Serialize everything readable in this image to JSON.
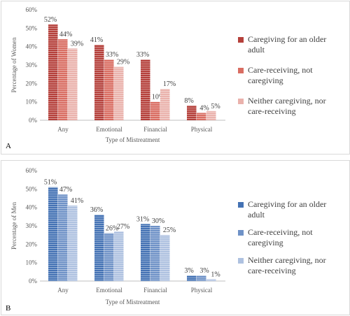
{
  "panels": [
    {
      "id": "a",
      "letter": "A",
      "chart_data": {
        "type": "bar",
        "categories": [
          "Any",
          "Emotional",
          "Financial",
          "Physical"
        ],
        "xlabel": "Type of Mistreatment",
        "ylabel": "Percentage of Women",
        "ylim": [
          0,
          60
        ],
        "yticks": [
          "0%",
          "10%",
          "20%",
          "30%",
          "40%",
          "50%",
          "60%"
        ],
        "grid": false,
        "legend_position": "right",
        "series": [
          {
            "name": "Caregiving for an older adult",
            "legend_lines": [
              "Caregiving for an older",
              "adult"
            ],
            "color": "#b5403b",
            "values": [
              52,
              41,
              33,
              8
            ],
            "labels": [
              "52%",
              "41%",
              "33%",
              "8%"
            ]
          },
          {
            "name": "Care-receiving, not caregiving",
            "legend_lines": [
              "Care-receiving, not",
              "caregiving"
            ],
            "color": "#d96d62",
            "values": [
              44,
              33,
              10,
              4
            ],
            "labels": [
              "44%",
              "33%",
              "10%",
              "4%"
            ]
          },
          {
            "name": "Neither caregiving, nor care-receiving",
            "legend_lines": [
              "Neither caregiving, nor",
              "care-receiving"
            ],
            "color": "#eab2ac",
            "values": [
              39,
              29,
              17,
              5
            ],
            "labels": [
              "39%",
              "29%",
              "17%",
              "5%"
            ]
          }
        ]
      }
    },
    {
      "id": "b",
      "letter": "B",
      "chart_data": {
        "type": "bar",
        "categories": [
          "Any",
          "Emotional",
          "Financial",
          "Physical"
        ],
        "xlabel": "Type of Mistreatment",
        "ylabel": "Percentage of Men",
        "ylim": [
          0,
          60
        ],
        "yticks": [
          "0%",
          "10%",
          "20%",
          "30%",
          "40%",
          "50%",
          "60%"
        ],
        "grid": false,
        "legend_position": "right",
        "series": [
          {
            "name": "Caregiving for an older adult",
            "legend_lines": [
              "Caregiving for an older",
              "adult"
            ],
            "color": "#4472b4",
            "values": [
              51,
              36,
              31,
              3
            ],
            "labels": [
              "51%",
              "36%",
              "31%",
              "3%"
            ]
          },
          {
            "name": "Care-receiving, not caregiving",
            "legend_lines": [
              "Care-receiving, not",
              "caregiving"
            ],
            "color": "#6f92c7",
            "values": [
              47,
              26,
              30,
              3
            ],
            "labels": [
              "47%",
              "26%",
              "30%",
              "3%"
            ]
          },
          {
            "name": "Neither caregiving, nor care-receiving",
            "legend_lines": [
              "Neither caregiving, nor",
              "care-receiving"
            ],
            "color": "#aec1e0",
            "values": [
              41,
              27,
              25,
              1
            ],
            "labels": [
              "41%",
              "27%",
              "25%",
              "1%"
            ]
          }
        ]
      }
    }
  ]
}
